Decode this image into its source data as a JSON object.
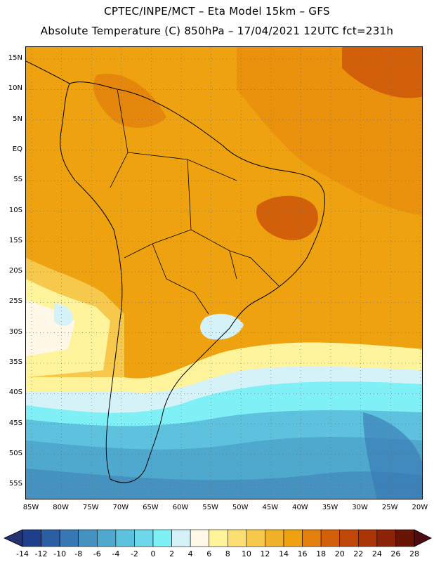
{
  "title_line1": "CPTEC/INPE/MCT –  Eta Model 15km – GFS",
  "title_line2": "Absolute Temperature (C) 850hPa – 17/04/2021 12UTC fct=231h",
  "lat_labels": [
    "15N",
    "10N",
    "5N",
    "EQ",
    "5S",
    "10S",
    "15S",
    "20S",
    "25S",
    "30S",
    "35S",
    "40S",
    "45S",
    "50S",
    "55S"
  ],
  "lon_labels": [
    "85W",
    "80W",
    "75W",
    "70W",
    "65W",
    "60W",
    "55W",
    "50W",
    "45W",
    "40W",
    "35W",
    "30W",
    "25W",
    "20W"
  ],
  "colorbar": {
    "ticks": [
      "-14",
      "-12",
      "-10",
      "-8",
      "-6",
      "-4",
      "-2",
      "0",
      "2",
      "4",
      "6",
      "8",
      "10",
      "12",
      "14",
      "16",
      "18",
      "20",
      "22",
      "24",
      "26",
      "28"
    ],
    "colors": [
      "#1e3f8a",
      "#2c5ea3",
      "#3777b3",
      "#4591c0",
      "#4fa8cd",
      "#5ec1dd",
      "#6fd7ea",
      "#7ff0f5",
      "#d4f2f7",
      "#fff8e8",
      "#fff39b",
      "#fbdf72",
      "#f6c94c",
      "#f0b12a",
      "#eea20f",
      "#e27f0d",
      "#d2600b",
      "#bf470a",
      "#a83408",
      "#8a2307",
      "#681405"
    ]
  },
  "map_regions": {
    "background": "#eea20f",
    "north_atlantic_hot": "#d2600b",
    "ne_brazil_hot": "#d2600b",
    "southern_ocean_cold": "#4fa8cd",
    "pacific_cool": "#fff39b"
  }
}
